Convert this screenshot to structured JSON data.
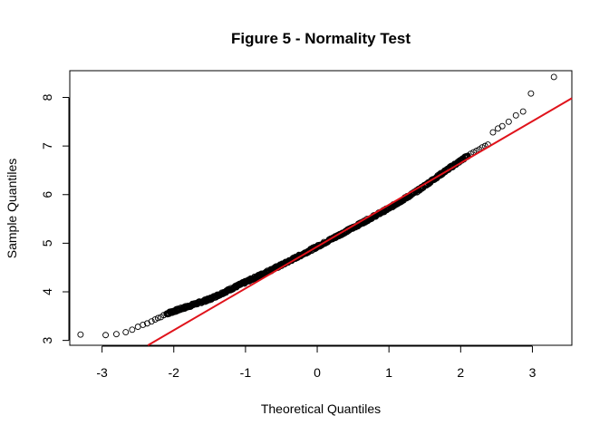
{
  "chart_data": {
    "type": "scatter",
    "title": "Figure 5 - Normality Test",
    "xlabel": "Theoretical Quantiles",
    "ylabel": "Sample Quantiles",
    "xlim": [
      -3.45,
      3.55
    ],
    "ylim": [
      2.9,
      8.55
    ],
    "x_ticks": [
      -3,
      -2,
      -1,
      0,
      1,
      2,
      3
    ],
    "y_ticks": [
      3,
      4,
      5,
      6,
      7,
      8
    ],
    "grid": false,
    "legend": "none",
    "qq_line": {
      "slope": 0.86,
      "intercept": 4.93,
      "color": "#e0131b"
    },
    "point_color": "#000000",
    "tail_points_low": [
      [
        -3.3,
        3.12
      ],
      [
        -2.95,
        3.11
      ],
      [
        -2.8,
        3.13
      ],
      [
        -2.67,
        3.17
      ],
      [
        -2.58,
        3.22
      ],
      [
        -2.5,
        3.28
      ],
      [
        -2.43,
        3.32
      ],
      [
        -2.37,
        3.35
      ],
      [
        -2.31,
        3.39
      ],
      [
        -2.26,
        3.43
      ],
      [
        -2.22,
        3.46
      ],
      [
        -2.18,
        3.48
      ],
      [
        -2.14,
        3.52
      ],
      [
        -2.1,
        3.55
      ]
    ],
    "tail_points_high": [
      [
        2.1,
        6.8
      ],
      [
        2.14,
        6.84
      ],
      [
        2.18,
        6.87
      ],
      [
        2.22,
        6.9
      ],
      [
        2.26,
        6.93
      ],
      [
        2.3,
        6.97
      ],
      [
        2.34,
        7.0
      ],
      [
        2.38,
        7.03
      ],
      [
        2.45,
        7.28
      ],
      [
        2.52,
        7.36
      ],
      [
        2.58,
        7.41
      ],
      [
        2.67,
        7.5
      ],
      [
        2.77,
        7.63
      ],
      [
        2.87,
        7.71
      ],
      [
        2.98,
        8.08
      ],
      [
        3.3,
        8.42
      ]
    ],
    "body_curve": [
      [
        -2.1,
        3.55
      ],
      [
        -1.5,
        3.85
      ],
      [
        -1.0,
        4.2
      ],
      [
        -0.5,
        4.55
      ],
      [
        0.0,
        4.93
      ],
      [
        0.5,
        5.32
      ],
      [
        1.0,
        5.72
      ],
      [
        1.4,
        6.08
      ],
      [
        1.8,
        6.5
      ],
      [
        2.1,
        6.8
      ]
    ],
    "body_point_count": 700
  }
}
